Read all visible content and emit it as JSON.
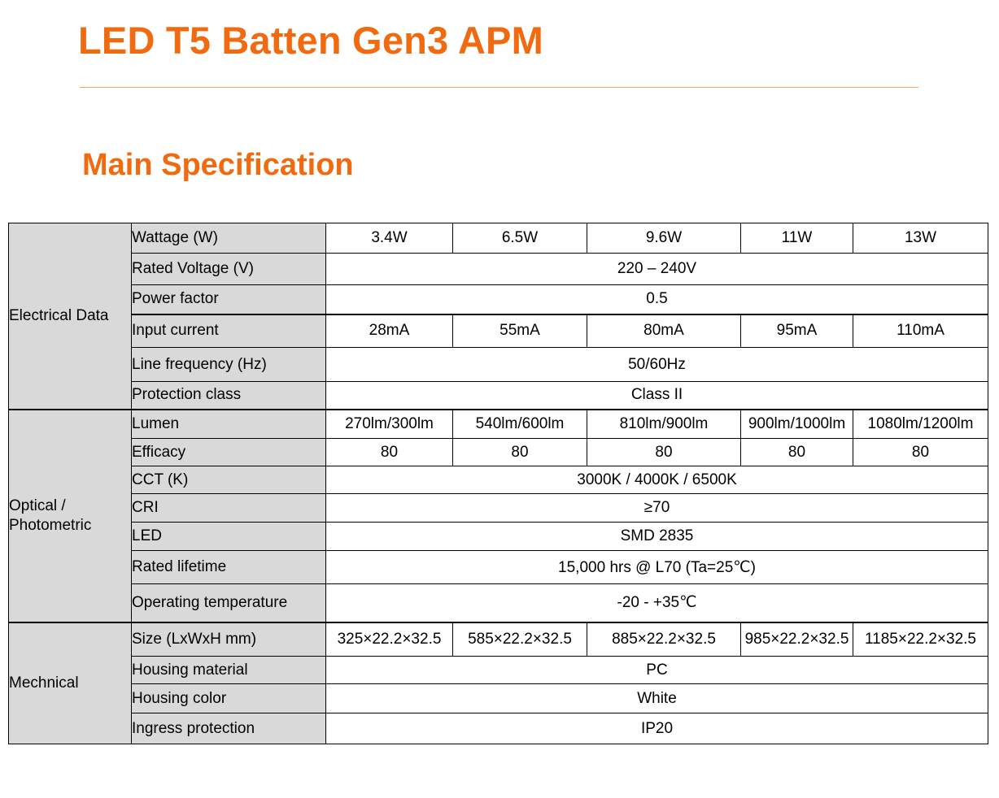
{
  "title": "LED T5 Batten Gen3 APM",
  "subtitle": "Main Specification",
  "groups": {
    "electrical": "Electrical Data",
    "optical": "Optical / Photometric",
    "mechanical": "Mechnical"
  },
  "rows": {
    "wattage": {
      "label": "Wattage (W)",
      "values": [
        "3.4W",
        "6.5W",
        "9.6W",
        "11W",
        "13W"
      ]
    },
    "rated_voltage": {
      "label": "Rated Voltage (V)",
      "value": "220 – 240V"
    },
    "power_factor": {
      "label": "Power factor",
      "value": "0.5"
    },
    "input_current": {
      "label": "Input current",
      "values": [
        "28mA",
        "55mA",
        "80mA",
        "95mA",
        "110mA"
      ]
    },
    "line_frequency": {
      "label": "Line frequency (Hz)",
      "value": "50/60Hz"
    },
    "protection_class": {
      "label": "Protection class",
      "value": "Class II"
    },
    "lumen": {
      "label": "Lumen",
      "values": [
        "270lm/300lm",
        "540lm/600lm",
        "810lm/900lm",
        "900lm/1000lm",
        "1080lm/1200lm"
      ]
    },
    "efficacy": {
      "label": "Efficacy",
      "values": [
        "80",
        "80",
        "80",
        "80",
        "80"
      ]
    },
    "cct": {
      "label": "CCT (K)",
      "value": "3000K / 4000K / 6500K"
    },
    "cri": {
      "label": "CRI",
      "value": "≥70"
    },
    "led": {
      "label": "LED",
      "value": "SMD 2835"
    },
    "rated_lifetime": {
      "label": "Rated lifetime",
      "value": "15,000 hrs @ L70 (Ta=25℃)"
    },
    "operating_temperature": {
      "label": "Operating temperature",
      "value": "-20 - +35℃"
    },
    "size": {
      "label": "Size (LxWxH mm)",
      "values": [
        "325×22.2×32.5",
        "585×22.2×32.5",
        "885×22.2×32.5",
        "985×22.2×32.5",
        "1185×22.2×32.5"
      ]
    },
    "housing_material": {
      "label": "Housing material",
      "value": "PC"
    },
    "housing_color": {
      "label": "Housing color",
      "value": "White"
    },
    "ingress_protection": {
      "label": "Ingress protection",
      "value": "IP20"
    }
  },
  "colors": {
    "accent": "#f26a10",
    "rule": "#f5a36a",
    "header_fill": "#d9d9d9"
  }
}
